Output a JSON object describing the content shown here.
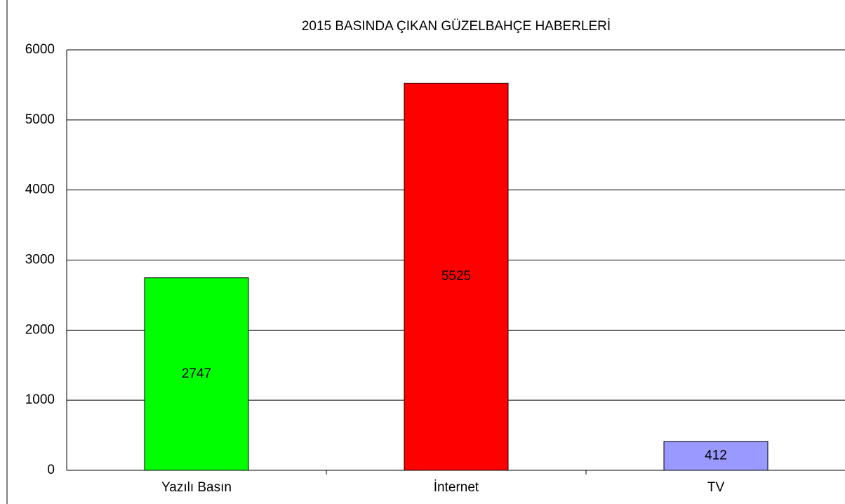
{
  "chart_data": {
    "type": "bar",
    "title": "2015 BASINDA ÇIKAN GÜZELBAHÇE HABERLERİ",
    "categories": [
      "Yazılı Basın",
      "İnternet",
      "TV"
    ],
    "values": [
      2747,
      5525,
      412
    ],
    "colors": [
      "#00ff00",
      "#ff0000",
      "#9999ff"
    ],
    "ylim": [
      0,
      6000
    ],
    "yticks": [
      0,
      1000,
      2000,
      3000,
      4000,
      5000,
      6000
    ],
    "grid": true
  }
}
